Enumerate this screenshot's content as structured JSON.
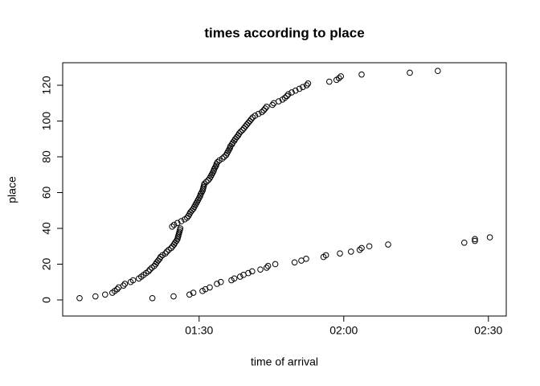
{
  "chart_data": {
    "type": "scatter",
    "title": "times according to place",
    "x_label": "time of arrival",
    "y_label": "place",
    "xlim": [
      61.7,
      153.7
    ],
    "ylim": [
      -9,
      132.6
    ],
    "xticks": [
      {
        "value": 90,
        "label": "01:30"
      },
      {
        "value": 120,
        "label": "02:00"
      },
      {
        "value": 150,
        "label": "02:30"
      }
    ],
    "yticks": [
      0,
      20,
      40,
      60,
      80,
      100,
      120
    ],
    "series": [
      {
        "color": "#000000",
        "x": [
          65.2,
          68.5,
          70.5,
          72,
          72.5,
          73,
          73.3,
          74.3,
          74.6,
          75.8,
          76.3,
          77.5,
          78,
          78.5,
          79,
          79.5,
          79.8,
          80.2,
          80.7,
          81,
          81.2,
          81.5,
          81.8,
          82,
          82.4,
          83,
          83.3,
          83.7,
          84.2,
          84.5,
          84.8,
          85,
          85.3,
          85.5,
          85.6,
          85.7,
          85.8,
          85.9,
          86,
          86.1,
          84.4,
          84.8,
          85.5,
          86.3,
          87,
          87.5,
          87.8,
          88,
          88.2,
          88.5,
          88.8,
          89,
          89.2,
          89.4,
          89.6,
          89.8,
          90,
          90.2,
          90.3,
          90.5,
          90.7,
          90.8,
          90.9,
          91,
          91.1,
          91.5,
          91.9,
          92.2,
          92.4,
          92.6,
          92.8,
          93,
          93.1,
          93.3,
          93.5,
          93.6,
          93.8,
          94.2,
          94.8,
          95.2,
          95.6,
          95.8,
          96,
          96.2,
          96.4,
          96.5,
          96.8,
          97,
          97.3,
          97.5,
          97.8,
          98.1,
          98.3,
          98.6,
          99,
          99.3,
          99.6,
          99.9,
          100.2,
          100.5,
          100.8,
          101.1,
          101.6,
          102.3,
          103,
          103.4,
          103.7,
          104,
          105.2,
          105.5,
          106.5,
          107.3,
          107.8,
          108.2,
          108.5,
          109.2,
          110,
          110.8,
          111.5,
          112.3,
          112.6,
          117,
          118.5,
          119,
          119.4,
          123.7,
          133.7,
          139.5
        ],
        "values": [
          1,
          2,
          3,
          4,
          5,
          6,
          7,
          8,
          9,
          10,
          11,
          12,
          13,
          14,
          15,
          16,
          17,
          18,
          19,
          20,
          21,
          22,
          23,
          24,
          25,
          26,
          27,
          28,
          29,
          30,
          31,
          32,
          33,
          34,
          35,
          36,
          37,
          38,
          39,
          40,
          41,
          42,
          43,
          44,
          45,
          46,
          47,
          48,
          49,
          50,
          51,
          52,
          53,
          54,
          55,
          56,
          57,
          58,
          59,
          60,
          61,
          62,
          63,
          64,
          65,
          66,
          67,
          68,
          69,
          70,
          71,
          72,
          73,
          74,
          75,
          76,
          77,
          78,
          79,
          80,
          81,
          82,
          83,
          84,
          85,
          86,
          87,
          88,
          89,
          90,
          91,
          92,
          93,
          94,
          95,
          96,
          97,
          98,
          99,
          100,
          101,
          102,
          103,
          104,
          105,
          106,
          107,
          108,
          109,
          110,
          111,
          112,
          113,
          114,
          115,
          116,
          117,
          118,
          119,
          120,
          121,
          122,
          123,
          124,
          125,
          126,
          127,
          128
        ]
      },
      {
        "color": "#000000",
        "x": [
          80.3,
          84.7,
          88,
          88.8,
          90.7,
          91.3,
          92.2,
          93.7,
          94.5,
          96.7,
          97.3,
          98.5,
          99.2,
          100.2,
          101,
          102.7,
          104,
          104.3,
          105.8,
          109.8,
          111.2,
          112.2,
          115.8,
          116.3,
          119.2,
          121.5,
          123.3,
          123.7,
          125.3,
          129.2,
          145,
          147.2,
          147.2,
          150.3
        ],
        "values": [
          1,
          2,
          3,
          4,
          5,
          6,
          7,
          9,
          10,
          11,
          12,
          13,
          14,
          15,
          16,
          17,
          18,
          19,
          20,
          21,
          22,
          23,
          24,
          25,
          26,
          27,
          28,
          29,
          30,
          31,
          32,
          33,
          34,
          35
        ]
      }
    ]
  }
}
